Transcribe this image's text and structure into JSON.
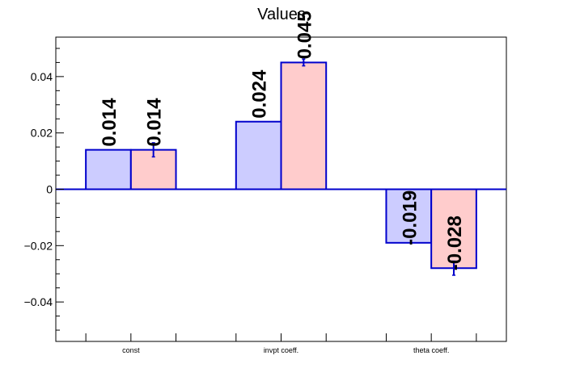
{
  "chart_data": {
    "type": "bar",
    "title": "Values",
    "xlabel": "",
    "ylabel": "",
    "categories": [
      "const",
      "invpt coeff.",
      "theta coeff."
    ],
    "series": [
      {
        "values": [
          0.014,
          0.024,
          -0.019
        ],
        "errors": [
          0,
          0,
          0
        ],
        "value_labels": [
          "0.014",
          "0.024",
          "-0.019"
        ],
        "fill": "#ccccff",
        "stroke": "#0000cc"
      },
      {
        "values": [
          0.014,
          0.045,
          -0.028
        ],
        "errors": [
          0.0025,
          0.0012,
          0.0025
        ],
        "value_labels": [
          "0.014",
          "0.045",
          "-0.028"
        ],
        "fill": "#ffcccc",
        "stroke": "#0000cc"
      }
    ],
    "ylim": [
      -0.054,
      0.054
    ],
    "yticks": [
      -0.04,
      -0.02,
      0,
      0.02,
      0.04
    ],
    "ytick_labels": [
      "−0.04",
      "−0.02",
      "0",
      "0.02",
      "0.04"
    ],
    "grid": false,
    "legend": "none",
    "zero_line": true,
    "colors": {
      "axis": "#000000",
      "zero_line": "#0000cc"
    }
  }
}
